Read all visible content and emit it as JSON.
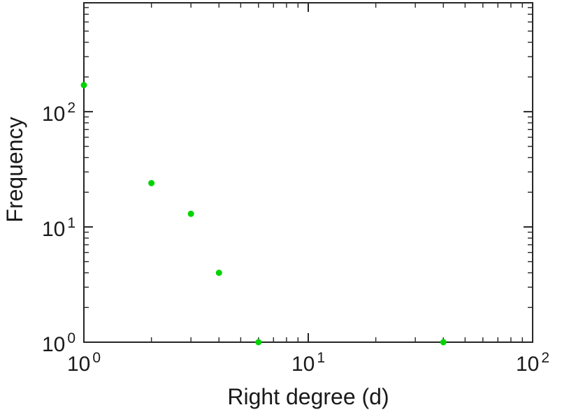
{
  "figure": {
    "background": "#ffffff",
    "axis_color": "#262626",
    "text_color": "#1a1a1a"
  },
  "chart_data": {
    "type": "scatter",
    "title": "",
    "xlabel": "Right degree (d)",
    "ylabel": "Frequency",
    "x_scale": "log",
    "y_scale": "log",
    "xlim": [
      1,
      100
    ],
    "ylim": [
      1,
      880
    ],
    "x_major_ticks": [
      1,
      10,
      100
    ],
    "y_major_ticks": [
      1,
      10,
      100
    ],
    "x_tick_labels": [
      "10^0",
      "10^1",
      "10^2"
    ],
    "y_tick_labels": [
      "10^0",
      "10^1",
      "10^2"
    ],
    "tick_label_base": "10",
    "grid": false,
    "legend": null,
    "marker": {
      "shape": "circle",
      "color": "#00d400",
      "radius": 4.5
    },
    "points": [
      {
        "x": 1,
        "y": 170
      },
      {
        "x": 2,
        "y": 24
      },
      {
        "x": 3,
        "y": 13
      },
      {
        "x": 4,
        "y": 4
      },
      {
        "x": 6,
        "y": 1
      },
      {
        "x": 40,
        "y": 1
      }
    ]
  }
}
